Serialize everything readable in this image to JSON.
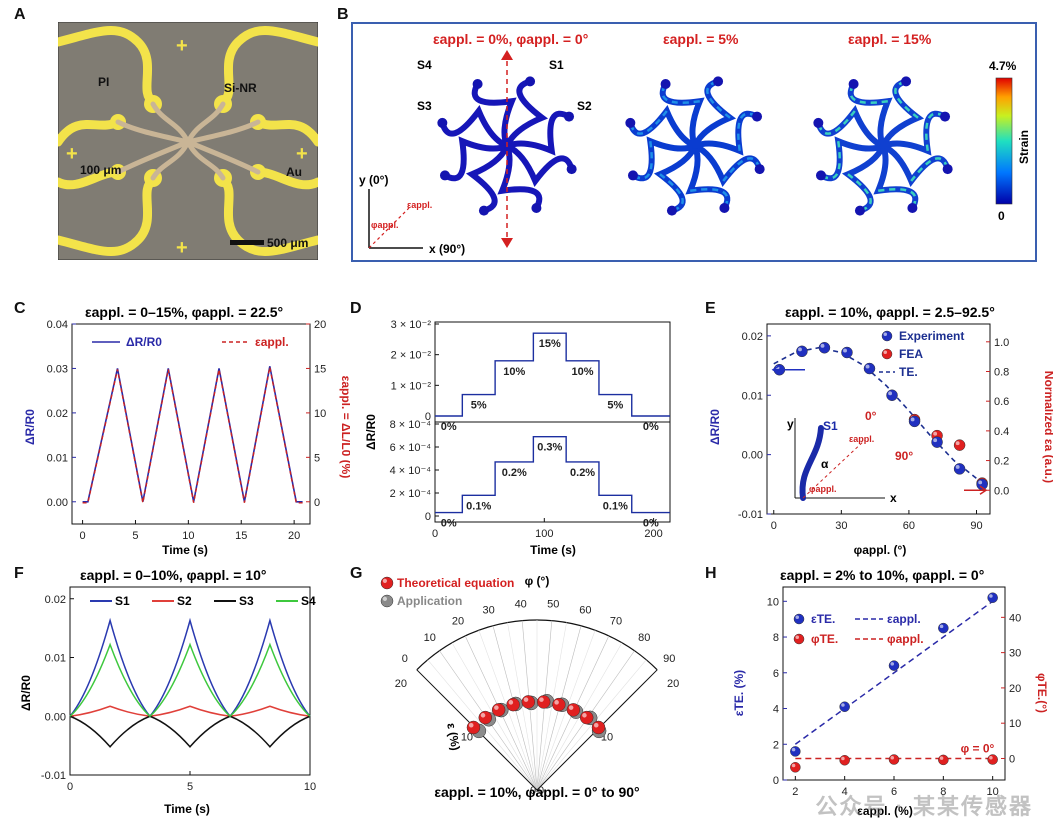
{
  "panels": {
    "A": {
      "letter": "A",
      "labels": {
        "pi": "PI",
        "sinr": "Si-NR",
        "width": "100 μm",
        "au": "Au",
        "scale": "500 μm"
      }
    },
    "B": {
      "letter": "B",
      "titles": [
        "ε",
        "appl.",
        " = 0%, φ",
        "appl.",
        " = 0°"
      ],
      "t0": "εappl. = 0%, φappl. = 0°",
      "t1": "εappl. = 5%",
      "t2": "εappl. = 15%",
      "s1": "S1",
      "s2": "S2",
      "s3": "S3",
      "s4": "S4",
      "yaxis": "y (0°)",
      "xaxis": "x (90°)",
      "phi": "φappl.",
      "eps": "εappl.",
      "cbar_max": "4.7%",
      "cbar_min": "0",
      "cbar_label": "Strain"
    },
    "C": {
      "letter": "C"
    },
    "D": {
      "letter": "D"
    },
    "E": {
      "letter": "E"
    },
    "F": {
      "letter": "F"
    },
    "G": {
      "letter": "G"
    },
    "H": {
      "letter": "H"
    }
  },
  "watermark": "公众号 · 某某传感器",
  "chart_data": [
    {
      "id": "C",
      "type": "line",
      "title": "εappl. = 0–15%, φappl. = 22.5°",
      "xlabel": "Time (s)",
      "ylabel": "ΔR/R0",
      "y2label": "εappl. = ΔL/L0 (%)",
      "xlim": [
        -1,
        21.5
      ],
      "ylim": [
        -0.005,
        0.04
      ],
      "y2lim": [
        -2.5,
        20
      ],
      "xticks": [
        0,
        5,
        10,
        15,
        20
      ],
      "yticks": [
        0.0,
        0.01,
        0.02,
        0.03,
        0.04
      ],
      "y2ticks": [
        0,
        5,
        10,
        15,
        20
      ],
      "ytick_labels": [
        "0.00",
        "0.01",
        "0.02",
        "0.03",
        "0.04"
      ],
      "series": [
        {
          "name": "ΔR/R0",
          "color": "#2a2aa8",
          "x": [
            0,
            0.5,
            3.3,
            5.7,
            8.1,
            10.5,
            12.9,
            15.3,
            17.7,
            20.2,
            20.8
          ],
          "y": [
            0,
            0,
            0.03,
            0,
            0.03,
            0,
            0.03,
            0,
            0.0305,
            0,
            0
          ]
        },
        {
          "name": "εappl.",
          "color": "#cc2222",
          "dashed": true
        }
      ]
    },
    {
      "id": "D",
      "type": "line",
      "xlabel": "Time (s)",
      "ylabel": "ΔR/R0",
      "xticks": [
        0,
        100,
        200
      ],
      "top": {
        "yticks": [
          "0",
          "1 × 10⁻²",
          "2 × 10⁻²",
          "3 × 10⁻²"
        ],
        "steps": [
          [
            "0%",
            0
          ],
          [
            "5%",
            0.007
          ],
          [
            "10%",
            0.018
          ],
          [
            "15%",
            0.027
          ],
          [
            "10%",
            0.018
          ],
          [
            "5%",
            0.007
          ],
          [
            "0%",
            0
          ]
        ]
      },
      "bottom": {
        "yticks": [
          "0",
          "2 × 10⁻⁴",
          "4 × 10⁻⁴",
          "6 × 10⁻⁴",
          "8 × 10⁻⁴"
        ],
        "steps": [
          [
            "0%",
            3e-05
          ],
          [
            "0.1%",
            0.00018
          ],
          [
            "0.2%",
            0.00047
          ],
          [
            "0.3%",
            0.00069
          ],
          [
            "0.2%",
            0.00047
          ],
          [
            "0.1%",
            0.00018
          ],
          [
            "0%",
            3e-05
          ]
        ]
      },
      "step_bounds": [
        0,
        25,
        55,
        90,
        120,
        150,
        180,
        215
      ]
    },
    {
      "id": "E",
      "type": "scatter",
      "title": "εappl. = 10%, φappl. = 2.5–92.5°",
      "xlabel": "φappl. (°)",
      "ylabel": "ΔR/R0",
      "y2label": "Normalized εa (a.u.)",
      "xlim": [
        -3,
        96
      ],
      "ylim": [
        -0.01,
        0.022
      ],
      "y2lim": [
        -0.16,
        1.12
      ],
      "xticks": [
        0,
        30,
        60,
        90
      ],
      "yticks": [
        -0.01,
        0.0,
        0.01,
        0.02
      ],
      "y2ticks": [
        0.0,
        0.2,
        0.4,
        0.6,
        0.8,
        1.0
      ],
      "ytick_labels": [
        "-0.01",
        "0.00",
        "0.01",
        "0.02"
      ],
      "y2tick_labels": [
        "0.0",
        "0.2",
        "0.4",
        "0.6",
        "0.8",
        "1.0"
      ],
      "legend": [
        "Experiment",
        "FEA",
        "TE."
      ],
      "experiment": {
        "x": [
          2.5,
          12.5,
          22.5,
          32.5,
          42.5,
          52.5,
          62.5,
          72.5,
          82.5,
          92.5
        ],
        "y": [
          0.0143,
          0.0174,
          0.018,
          0.0172,
          0.0145,
          0.01,
          0.0056,
          0.0021,
          -0.0024,
          -0.005
        ]
      },
      "fea": {
        "x": [
          62.5,
          72.5,
          82.5,
          92.5
        ],
        "y": [
          0.0059,
          0.0032,
          0.0016,
          -0.0048
        ]
      },
      "te": {
        "x": [
          0,
          10,
          20,
          30,
          40,
          50,
          60,
          70,
          80,
          90,
          93
        ],
        "y": [
          0.0153,
          0.0173,
          0.018,
          0.0172,
          0.015,
          0.0116,
          0.0074,
          0.003,
          -0.001,
          -0.004,
          -0.0046
        ]
      },
      "inset": {
        "y": "y",
        "s1": "S1",
        "alpha": "α",
        "x": "x",
        "phi": "φappl.",
        "zero": "0°",
        "ninety": "90°",
        "eps": "εappl."
      }
    },
    {
      "id": "F",
      "type": "line",
      "title": "εappl. = 0–10%, φappl. = 10°",
      "xlabel": "Time (s)",
      "ylabel": "ΔR/R0",
      "xlim": [
        0,
        10
      ],
      "ylim": [
        -0.01,
        0.022
      ],
      "xticks": [
        0,
        5,
        10
      ],
      "yticks": [
        -0.01,
        0.0,
        0.01,
        0.02
      ],
      "ytick_labels": [
        "-0.01",
        "0.00",
        "0.01",
        "0.02"
      ],
      "peaks": [
        1.67,
        5.0,
        8.33
      ],
      "valleys": [
        0,
        3.33,
        6.67,
        10
      ],
      "series": [
        {
          "name": "S1",
          "color": "#2a3ab0",
          "peak": 0.0163
        },
        {
          "name": "S2",
          "color": "#e0403a",
          "peak": 0.0017
        },
        {
          "name": "S3",
          "color": "#111111",
          "peak": -0.0052
        },
        {
          "name": "S4",
          "color": "#3ec83e",
          "peak": 0.0122
        }
      ]
    },
    {
      "id": "G",
      "type": "scatter",
      "xlabel": "εappl. = 10%, φappl. = 0° to 90°",
      "angle_label": "φ (°)",
      "radius_label": "ε (%)",
      "angle_ticks": [
        0,
        10,
        20,
        30,
        40,
        50,
        60,
        70,
        80,
        90
      ],
      "radius_ticks": [
        0,
        10,
        20
      ],
      "rmax": 20,
      "legend": [
        "Theoretical equation",
        "Application"
      ],
      "theory": {
        "phi": [
          0,
          10,
          20,
          30,
          40,
          50,
          60,
          70,
          80,
          90
        ],
        "eps": [
          10,
          10,
          10,
          10,
          10,
          10,
          10,
          10,
          10,
          10
        ]
      },
      "application": {
        "phi": [
          0,
          10,
          20,
          30,
          40,
          50,
          60,
          70,
          80,
          90
        ],
        "eps": [
          10,
          10.3,
          10.5,
          10.6,
          10.4,
          10.6,
          10.5,
          10.3,
          10.5,
          10
        ]
      }
    },
    {
      "id": "H",
      "type": "scatter",
      "title": "εappl. = 2% to 10%, φappl. = 0°",
      "xlabel": "εappl. (%)",
      "ylabel": "εTE. (%)",
      "y2label": "φTE.(°)",
      "xlim": [
        1.5,
        10.5
      ],
      "ylim": [
        0,
        10.8
      ],
      "y2lim": [
        -6.1,
        48.6
      ],
      "xticks": [
        2,
        4,
        6,
        8,
        10
      ],
      "yticks": [
        0,
        2,
        4,
        6,
        8,
        10
      ],
      "y2ticks": [
        0,
        10,
        20,
        30,
        40
      ],
      "legend": [
        "εTE.",
        "εappl.",
        "φTE.",
        "φappl."
      ],
      "annotation": "φ = 0°",
      "eps_te": {
        "x": [
          2,
          4,
          6,
          8,
          10
        ],
        "y": [
          1.6,
          4.1,
          6.4,
          8.5,
          10.2
        ]
      },
      "eps_appl": {
        "x": [
          2,
          10
        ],
        "y": [
          2,
          10
        ]
      },
      "phi_te": {
        "x": [
          2,
          4,
          6,
          8,
          10
        ],
        "y": [
          -2.5,
          -0.5,
          -0.3,
          -0.4,
          -0.3
        ]
      },
      "phi_appl": {
        "x": [
          2,
          10
        ],
        "y": [
          0,
          0
        ]
      }
    }
  ]
}
